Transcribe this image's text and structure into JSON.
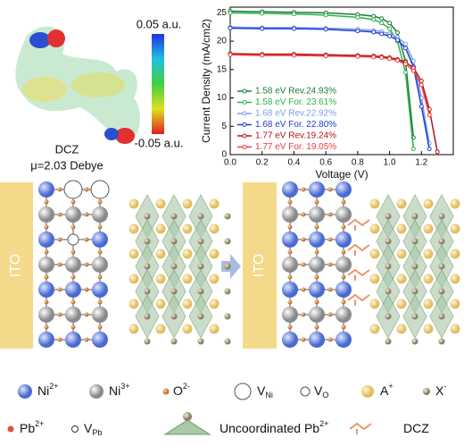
{
  "chart_data": {
    "type": "line",
    "x_label": "Voltage (V)",
    "y_label": "Current Density (mA/cm2)",
    "x": [
      0,
      0.2,
      0.4,
      0.6,
      0.8,
      0.9,
      0.95,
      1.0,
      1.05,
      1.1,
      1.15,
      1.2,
      1.25,
      1.3
    ],
    "xlim": [
      0,
      1.4
    ],
    "ylim": [
      0,
      26
    ],
    "xticks": [
      {
        "value": 0,
        "label": "0.0"
      },
      {
        "value": 0.2,
        "label": "0.2"
      },
      {
        "value": 0.4,
        "label": "0.4"
      },
      {
        "value": 0.6,
        "label": "0.6"
      },
      {
        "value": 0.8,
        "label": "0.8"
      },
      {
        "value": 1,
        "label": "1.0"
      },
      {
        "value": 1.2,
        "label": "1.2"
      }
    ],
    "yticks": [
      0,
      5,
      10,
      15,
      20,
      25
    ],
    "series": [
      {
        "name": "1.58 eV Rev.24.93%",
        "color": "#1e7b3c",
        "values": [
          25.3,
          25.2,
          25.1,
          25.0,
          24.7,
          24.4,
          24.0,
          23.2,
          21.5,
          16.5,
          3,
          null,
          null,
          null
        ]
      },
      {
        "name": "1.58 eV For. 23.61%",
        "color": "#2db34a",
        "values": [
          25.0,
          24.9,
          24.8,
          24.6,
          24.2,
          23.8,
          23.2,
          22.2,
          20.0,
          14.5,
          1,
          null,
          null,
          null
        ]
      },
      {
        "name": "1.68 eV Rev.22.92%",
        "color": "#7f9be6",
        "values": [
          22.5,
          22.4,
          22.4,
          22.3,
          22.1,
          21.9,
          21.7,
          21.3,
          20.7,
          19.5,
          16.5,
          10,
          2,
          null
        ]
      },
      {
        "name": "1.68 eV For. 22.80%",
        "color": "#1f3fd0",
        "values": [
          22.3,
          22.2,
          22.2,
          22.1,
          21.8,
          21.6,
          21.3,
          20.9,
          20.2,
          18.8,
          15.5,
          8.5,
          1,
          null
        ]
      },
      {
        "name": "1.77 eV Rev.19.24%",
        "color": "#b3141b",
        "values": [
          17.8,
          17.7,
          17.7,
          17.6,
          17.5,
          17.4,
          17.3,
          17.1,
          16.8,
          16.3,
          15.3,
          13,
          8,
          0.5
        ]
      },
      {
        "name": "1.77 eV For. 19.05%",
        "color": "#ee3b3b",
        "values": [
          17.6,
          17.5,
          17.5,
          17.4,
          17.3,
          17.2,
          17.1,
          16.9,
          16.6,
          16.0,
          14.8,
          12.3,
          7,
          null
        ]
      }
    ]
  },
  "molecule": {
    "name": "DCZ",
    "dipole": "μ=2.03 Debye",
    "scale_max": "0.05 a.u.",
    "scale_min": "-0.05 a.u."
  },
  "diagram": {
    "ito_left": "ITO",
    "ito_right": "ITO"
  },
  "legend": {
    "ni2": {
      "base": "Ni",
      "sup": "2+"
    },
    "ni3": {
      "base": "Ni",
      "sup": "3+"
    },
    "o": {
      "base": "O",
      "sup": "2-"
    },
    "vni": {
      "base": "V",
      "sub": "Ni"
    },
    "vo": {
      "base": "V",
      "sub": "O"
    },
    "a": {
      "base": "A",
      "sup": "+"
    },
    "x": {
      "base": "X",
      "sup": "-"
    },
    "pb": {
      "base": "Pb",
      "sup": "2+"
    },
    "vpb": {
      "base": "V",
      "sub": "Pb"
    },
    "uncoord": {
      "base": "Uncoordinated Pb",
      "sup": "2+"
    },
    "dcz": {
      "base": "DCZ"
    }
  }
}
